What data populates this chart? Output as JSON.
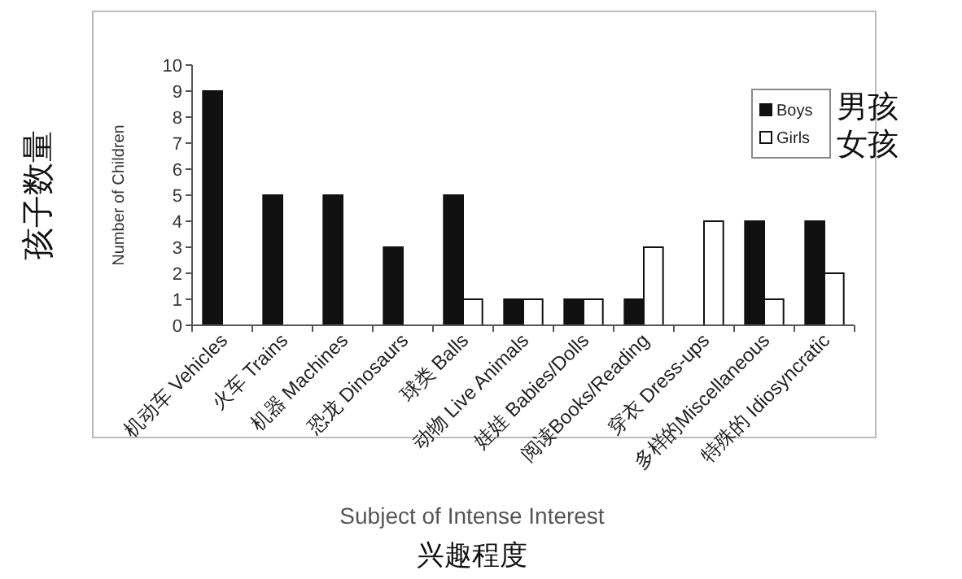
{
  "chart_data": {
    "type": "bar",
    "categories": [
      "机动车 Vehicles",
      "火车 Trains",
      "机器 Machines",
      "恐龙 Dinosaurs",
      "球类 Balls",
      "动物 Live Animals",
      "娃娃 Babies/Dolls",
      "阅读Books/Reading",
      "穿衣 Dress-ups",
      "多样的Miscellaneous",
      "特殊的 Idiosyncratic"
    ],
    "series": [
      {
        "name": "Boys",
        "color": "#111111",
        "values": [
          9,
          5,
          5,
          3,
          5,
          1,
          1,
          1,
          0,
          4,
          4
        ]
      },
      {
        "name": "Girls",
        "color": "#ffffff",
        "values": [
          0,
          0,
          0,
          0,
          1,
          1,
          1,
          3,
          4,
          1,
          2
        ]
      }
    ],
    "ylabel": "Number of Children",
    "xlabel": "Subject of Intense Interest",
    "ylim": [
      0,
      10
    ],
    "yticks": [
      0,
      1,
      2,
      3,
      4,
      5,
      6,
      7,
      8,
      9,
      10
    ],
    "legend": "top right",
    "grid": false,
    "annotations": [
      "男孩",
      "女孩",
      "孩子数量",
      "兴趣程度"
    ]
  }
}
